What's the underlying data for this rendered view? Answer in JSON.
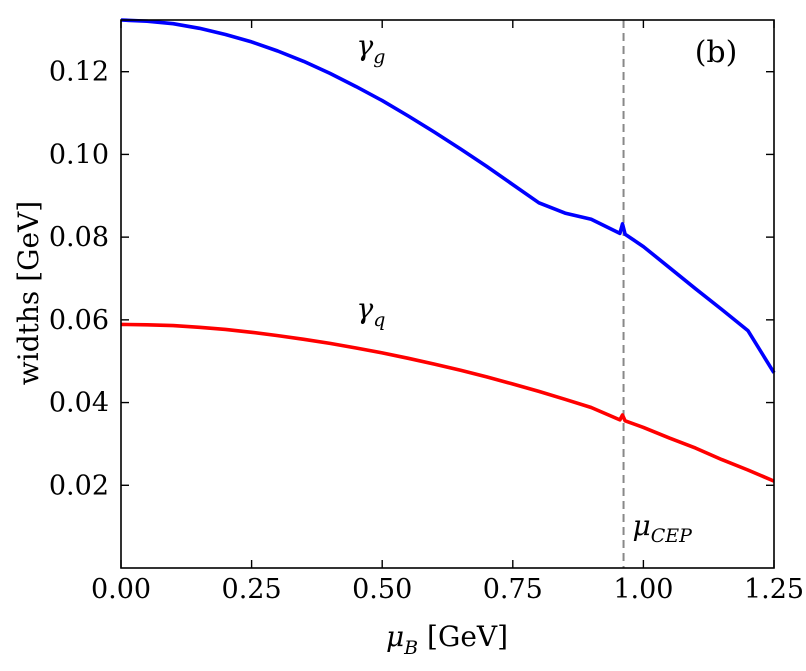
{
  "chart_data": {
    "type": "line",
    "panel_label": "(b)",
    "xlabel": {
      "symbol": "μ",
      "sub": "B",
      "unit": " [GeV]"
    },
    "ylabel": "widths [GeV]",
    "xlim": [
      0.0,
      1.25
    ],
    "ylim": [
      0.0,
      0.1325
    ],
    "x_ticks": [
      "0.00",
      "0.25",
      "0.50",
      "0.75",
      "1.00",
      "1.25"
    ],
    "y_ticks": [
      "0.02",
      "0.04",
      "0.06",
      "0.08",
      "0.10",
      "0.12"
    ],
    "grid": false,
    "series": [
      {
        "name": "γ_g",
        "label_symbol": "γ",
        "label_sub": "g",
        "label_at": [
          0.47,
          0.124
        ],
        "color": "#0000ff",
        "x": [
          0.0,
          0.05,
          0.1,
          0.15,
          0.2,
          0.25,
          0.3,
          0.35,
          0.4,
          0.45,
          0.5,
          0.55,
          0.6,
          0.65,
          0.7,
          0.75,
          0.8,
          0.85,
          0.9,
          0.955,
          0.96,
          0.965,
          1.0,
          1.05,
          1.1,
          1.15,
          1.2,
          1.25
        ],
        "y": [
          0.1325,
          0.1322,
          0.1316,
          0.1305,
          0.129,
          0.1272,
          0.125,
          0.1225,
          0.1196,
          0.1164,
          0.113,
          0.1093,
          0.1054,
          0.1013,
          0.0971,
          0.0927,
          0.0883,
          0.0858,
          0.0843,
          0.0809,
          0.0832,
          0.0807,
          0.0777,
          0.0726,
          0.0675,
          0.0625,
          0.0574,
          0.0472
        ]
      },
      {
        "name": "γ_q",
        "label_symbol": "γ",
        "label_sub": "q",
        "label_at": [
          0.47,
          0.0605
        ],
        "color": "#ff0000",
        "x": [
          0.0,
          0.05,
          0.1,
          0.15,
          0.2,
          0.25,
          0.3,
          0.35,
          0.4,
          0.45,
          0.5,
          0.55,
          0.6,
          0.65,
          0.7,
          0.75,
          0.8,
          0.85,
          0.9,
          0.955,
          0.96,
          0.965,
          1.0,
          1.05,
          1.1,
          1.15,
          1.2,
          1.25
        ],
        "y": [
          0.0589,
          0.0588,
          0.0586,
          0.0582,
          0.0577,
          0.057,
          0.0562,
          0.0553,
          0.0543,
          0.0532,
          0.052,
          0.0507,
          0.0493,
          0.0478,
          0.0462,
          0.0445,
          0.0427,
          0.0408,
          0.0388,
          0.0358,
          0.037,
          0.0356,
          0.034,
          0.0314,
          0.029,
          0.0262,
          0.0237,
          0.021
        ]
      }
    ],
    "annotations": [
      {
        "type": "vline",
        "x": 0.962,
        "style": "dashed",
        "color": "#888888",
        "label_symbol": "μ",
        "label_sub": "CEP"
      }
    ]
  }
}
